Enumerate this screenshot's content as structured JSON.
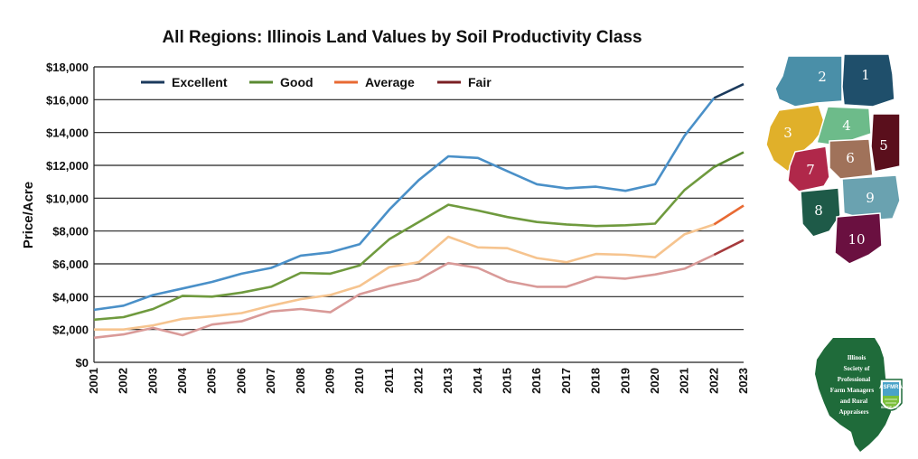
{
  "chart_data": {
    "type": "line",
    "title": "All Regions: Illinois Land Values by Soil Productivity Class",
    "xlabel": "",
    "ylabel": "Price/Acre",
    "ylim": [
      0,
      18000
    ],
    "grid": true,
    "legend_position": "top-left",
    "x": [
      "2001",
      "2002",
      "2003",
      "2004",
      "2005",
      "2006",
      "2007",
      "2008",
      "2009",
      "2010",
      "2011",
      "2012",
      "2013",
      "2014",
      "2015",
      "2016",
      "2017",
      "2018",
      "2019",
      "2020",
      "2021",
      "2022",
      "2023"
    ],
    "y_ticks": [
      0,
      2000,
      4000,
      6000,
      8000,
      10000,
      12000,
      14000,
      16000,
      18000
    ],
    "y_tick_labels": [
      "$0",
      "$2,000",
      "$4,000",
      "$6,000",
      "$8,000",
      "$10,000",
      "$12,000",
      "$14,000",
      "$16,000",
      "$18,000"
    ],
    "series": [
      {
        "name": "Excellent",
        "legend_color": "#1b3a5c",
        "color": "#4a90c8",
        "recent_color": "#1b3a5c",
        "values": [
          3200,
          3450,
          4100,
          4500,
          4900,
          5400,
          5750,
          6500,
          6700,
          7200,
          9300,
          11100,
          12550,
          12450,
          11650,
          10850,
          10600,
          10700,
          10450,
          10850,
          13800,
          16100,
          16950
        ]
      },
      {
        "name": "Good",
        "legend_color": "#5a8a32",
        "color": "#6f9a3e",
        "recent_color": "#5a8a32",
        "values": [
          2600,
          2750,
          3250,
          4050,
          4000,
          4250,
          4600,
          5450,
          5400,
          5900,
          7500,
          8550,
          9600,
          9250,
          8850,
          8550,
          8400,
          8300,
          8350,
          8450,
          10500,
          11900,
          12800
        ]
      },
      {
        "name": "Average",
        "legend_color": "#e86a33",
        "color": "#f6c48f",
        "recent_color": "#e86a33",
        "values": [
          2000,
          2000,
          2250,
          2650,
          2800,
          3000,
          3450,
          3850,
          4100,
          4650,
          5800,
          6100,
          7650,
          7000,
          6950,
          6350,
          6100,
          6600,
          6550,
          6400,
          7800,
          8400,
          9550
        ]
      },
      {
        "name": "Fair",
        "legend_color": "#7a1f23",
        "color": "#d99a98",
        "recent_color": "#a63a3c",
        "values": [
          1500,
          1700,
          2100,
          1650,
          2300,
          2500,
          3100,
          3250,
          3050,
          4150,
          4650,
          5050,
          6050,
          5750,
          4950,
          4600,
          4600,
          5200,
          5100,
          5350,
          5700,
          6550,
          7450
        ]
      }
    ]
  },
  "map": {
    "regions": [
      "1",
      "2",
      "3",
      "4",
      "5",
      "6",
      "7",
      "8",
      "9",
      "10"
    ],
    "colors": {
      "1": "#1f4f6b",
      "2": "#4a8fa8",
      "3": "#e0b02a",
      "4": "#6dbb8a",
      "5": "#5a0f1c",
      "6": "#a0725a",
      "7": "#b0284a",
      "8": "#1e5a48",
      "9": "#6aa2b0",
      "10": "#6a1040"
    }
  },
  "logo": {
    "lines": [
      "Illinois",
      "Society of",
      "Professional",
      "Farm Managers",
      "and Rural",
      "Appraisers"
    ],
    "badge": "ASFMRA",
    "badge_sub": "SINCE 1927",
    "color": "#1f6b3a"
  }
}
